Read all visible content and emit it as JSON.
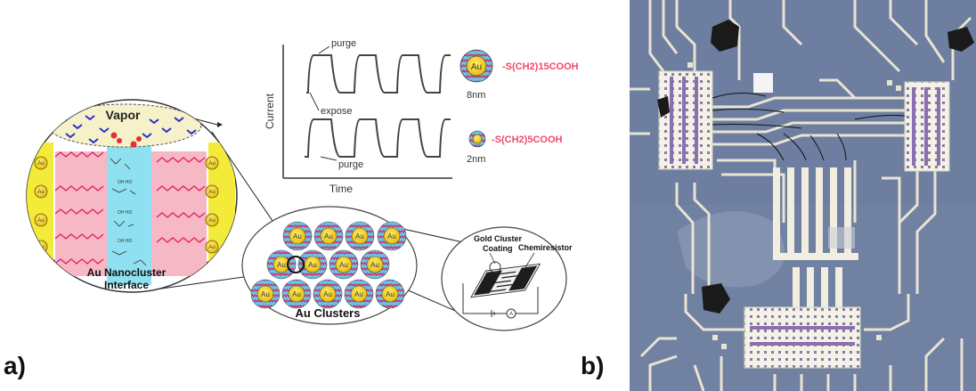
{
  "panel_a": {
    "label": "a)",
    "vapor_label": "Vapor",
    "interface_label": "Au Nanocluster Interface",
    "interface_line1": "Au Nanocluster",
    "interface_line2": "Interface",
    "au_label": "Au",
    "clusters_label": "Au Clusters",
    "graph": {
      "y_axis_label": "Current",
      "x_axis_label": "Time",
      "annotation_purge_top": "purge",
      "annotation_expose": "expose",
      "annotation_purge_bottom": "purge"
    },
    "ligand_long": {
      "particle_label": "Au",
      "formula": "-S(CH2)15COOH",
      "size": "8nm"
    },
    "ligand_short": {
      "formula": "-S(CH2)5COOH",
      "size": "2nm"
    },
    "device": {
      "gold_cluster_line1": "Gold Cluster",
      "gold_cluster_line2": "Coating",
      "chemiresistor_label": "Chemiresistor",
      "meter_symbol": "A"
    },
    "colors": {
      "ligand_chain": "#e0206a",
      "cluster_ring": "#5ec8e8",
      "gold_core": "#f4d21e",
      "ligand_text": "#f24868",
      "vapor_molecule": "#2d2dcf",
      "pink_region": "#f6b8c4",
      "cyan_region": "#8fe0f0",
      "vapor_cloud": "#f6f1c9"
    }
  },
  "panel_b": {
    "label": "b)",
    "colors": {
      "substrate": "#6d7ea0",
      "trace": "#e8e4d2",
      "pad": "#f4f1e6",
      "blob": "#1a1a1a"
    }
  }
}
